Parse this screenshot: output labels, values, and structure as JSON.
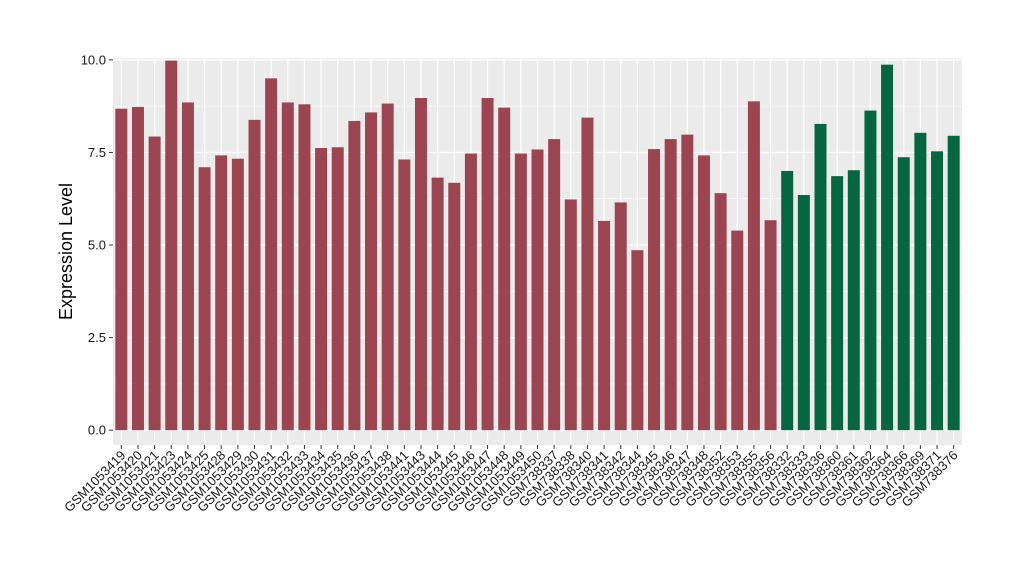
{
  "chart_data": {
    "type": "bar",
    "ylabel": "Expression Level",
    "xlabel": "",
    "title": "",
    "ylim": [
      -0.4,
      10.05
    ],
    "yticks": [
      0.0,
      2.5,
      5.0,
      7.5,
      10.0
    ],
    "ytick_labels": [
      "0.0",
      "2.5",
      "5.0",
      "7.5",
      "10.0"
    ],
    "grid": true,
    "legend": "none",
    "background_color": "#EBEBEB",
    "grid_color": "#FFFFFF",
    "group_colors": {
      "red": "#9B4550",
      "green": "#066641"
    },
    "categories": [
      "GSM1053419",
      "GSM1053420",
      "GSM1053421",
      "GSM1053423",
      "GSM1053424",
      "GSM1053425",
      "GSM1053428",
      "GSM1053429",
      "GSM1053430",
      "GSM1053431",
      "GSM1053432",
      "GSM1053433",
      "GSM1053434",
      "GSM1053435",
      "GSM1053436",
      "GSM1053437",
      "GSM1053438",
      "GSM1053441",
      "GSM1053443",
      "GSM1053444",
      "GSM1053445",
      "GSM1053446",
      "GSM1053447",
      "GSM1053448",
      "GSM1053449",
      "GSM1053450",
      "GSM738337",
      "GSM738338",
      "GSM738340",
      "GSM738341",
      "GSM738342",
      "GSM738344",
      "GSM738345",
      "GSM738346",
      "GSM738347",
      "GSM738348",
      "GSM738352",
      "GSM738353",
      "GSM738355",
      "GSM738356",
      "GSM738332",
      "GSM738333",
      "GSM738336",
      "GSM738360",
      "GSM738361",
      "GSM738362",
      "GSM738364",
      "GSM738366",
      "GSM738369",
      "GSM738371",
      "GSM738376"
    ],
    "values": [
      8.68,
      8.73,
      7.93,
      9.98,
      8.85,
      7.1,
      7.42,
      7.33,
      8.38,
      9.5,
      8.85,
      8.8,
      7.62,
      7.64,
      8.35,
      8.58,
      8.82,
      7.31,
      8.97,
      6.82,
      6.68,
      7.47,
      8.97,
      8.71,
      7.47,
      7.58,
      7.86,
      6.23,
      8.44,
      5.65,
      6.15,
      4.86,
      7.59,
      7.86,
      7.98,
      7.42,
      6.4,
      5.39,
      8.88,
      5.67,
      7.0,
      6.35,
      8.27,
      6.86,
      7.02,
      8.63,
      9.87,
      7.37,
      8.03,
      7.53,
      7.95
    ],
    "groups": [
      "red",
      "red",
      "red",
      "red",
      "red",
      "red",
      "red",
      "red",
      "red",
      "red",
      "red",
      "red",
      "red",
      "red",
      "red",
      "red",
      "red",
      "red",
      "red",
      "red",
      "red",
      "red",
      "red",
      "red",
      "red",
      "red",
      "red",
      "red",
      "red",
      "red",
      "red",
      "red",
      "red",
      "red",
      "red",
      "red",
      "red",
      "red",
      "red",
      "red",
      "green",
      "green",
      "green",
      "green",
      "green",
      "green",
      "green",
      "green",
      "green",
      "green",
      "green"
    ]
  }
}
